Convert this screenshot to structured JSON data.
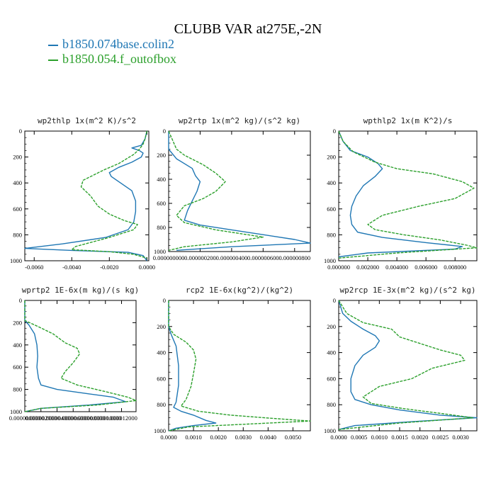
{
  "title": "CLUBB VAR at275E,-2N",
  "legend": [
    {
      "label": "b1850.074base.colin2",
      "color": "#1f77b4",
      "style": "solid"
    },
    {
      "label": "b1850.054.f_outofbox",
      "color": "#2ca02c",
      "style": "dashed"
    }
  ],
  "chart_data": [
    {
      "type": "line",
      "title": "wp2thlp  1x(m^2 K)/s^2",
      "ylim": [
        1000,
        0
      ],
      "xlim": [
        -0.0065,
        0.0001
      ],
      "xticks": [
        "-0.0060",
        "-0.0040",
        "-0.0020",
        "0.0000"
      ],
      "xtick_values": [
        -0.006,
        -0.004,
        -0.002,
        0.0
      ],
      "yticks": [
        "0",
        "200",
        "400",
        "600",
        "800",
        "1000"
      ],
      "series": [
        {
          "name": "b1850.074base.colin2",
          "points": [
            [
              0.0,
              0
            ],
            [
              -0.0001,
              60
            ],
            [
              -0.0003,
              110
            ],
            [
              -0.0008,
              130
            ],
            [
              -0.0004,
              150
            ],
            [
              -0.0002,
              170
            ],
            [
              -0.0003,
              200
            ],
            [
              -0.0008,
              240
            ],
            [
              -0.0015,
              280
            ],
            [
              -0.002,
              320
            ],
            [
              -0.0019,
              350
            ],
            [
              -0.0014,
              400
            ],
            [
              -0.0008,
              460
            ],
            [
              -0.0006,
              540
            ],
            [
              -0.0006,
              620
            ],
            [
              -0.0007,
              700
            ],
            [
              -0.001,
              760
            ],
            [
              -0.0022,
              820
            ],
            [
              -0.0045,
              870
            ],
            [
              -0.0065,
              905
            ],
            [
              -0.004,
              920
            ],
            [
              -0.001,
              935
            ],
            [
              -0.0002,
              960
            ],
            [
              0.0,
              1000
            ]
          ]
        },
        {
          "name": "b1850.054.f_outofbox",
          "points": [
            [
              0.0,
              0
            ],
            [
              -0.0001,
              60
            ],
            [
              -0.0002,
              100
            ],
            [
              -0.0004,
              140
            ],
            [
              -0.0007,
              180
            ],
            [
              -0.0015,
              250
            ],
            [
              -0.0023,
              300
            ],
            [
              -0.0034,
              380
            ],
            [
              -0.0035,
              430
            ],
            [
              -0.003,
              500
            ],
            [
              -0.0026,
              580
            ],
            [
              -0.002,
              640
            ],
            [
              -0.0012,
              690
            ],
            [
              -0.0005,
              720
            ],
            [
              -0.0007,
              760
            ],
            [
              -0.002,
              820
            ],
            [
              -0.0038,
              890
            ],
            [
              -0.004,
              915
            ],
            [
              -0.002,
              930
            ],
            [
              -0.0007,
              950
            ],
            [
              0.0,
              980
            ]
          ]
        }
      ]
    },
    {
      "type": "line",
      "title": "wp2rtp  1x(m^2 kg)/(s^2 kg)",
      "ylim": [
        1000,
        0
      ],
      "xlim": [
        0.0,
        9e-07
      ],
      "xticks": [
        "0.000000000",
        "0.000000200",
        "0.000000400",
        "0.000000600",
        "0.000000800"
      ],
      "xtick_values": [
        0.0,
        2e-07,
        4e-07,
        6e-07,
        8e-07
      ],
      "yticks": [
        "0",
        "200",
        "400",
        "600",
        "800",
        "1000"
      ],
      "series": [
        {
          "name": "b1850.074base.colin2",
          "points": [
            [
              0.0,
              0
            ],
            [
              0.0,
              150
            ],
            [
              5e-08,
              230
            ],
            [
              1.5e-07,
              310
            ],
            [
              1.7e-07,
              370
            ],
            [
              2e-07,
              420
            ],
            [
              1.8e-07,
              500
            ],
            [
              1.5e-07,
              580
            ],
            [
              1.2e-07,
              660
            ],
            [
              1e-07,
              740
            ],
            [
              2e-07,
              780
            ],
            [
              4e-07,
              820
            ],
            [
              6e-07,
              860
            ],
            [
              8e-07,
              900
            ],
            [
              9e-07,
              930
            ],
            [
              4e-07,
              960
            ],
            [
              5e-08,
              990
            ]
          ]
        },
        {
          "name": "b1850.054.f_outofbox",
          "points": [
            [
              0.0,
              0
            ],
            [
              5e-08,
              150
            ],
            [
              1e-07,
              200
            ],
            [
              2.2e-07,
              280
            ],
            [
              3e-07,
              350
            ],
            [
              3.6e-07,
              420
            ],
            [
              3e-07,
              500
            ],
            [
              2.2e-07,
              560
            ],
            [
              1e-07,
              620
            ],
            [
              5e-08,
              700
            ],
            [
              1e-07,
              760
            ],
            [
              3e-07,
              820
            ],
            [
              5e-07,
              860
            ],
            [
              6e-07,
              880
            ],
            [
              4e-07,
              920
            ],
            [
              1e-07,
              960
            ],
            [
              0.0,
              990
            ]
          ]
        }
      ]
    },
    {
      "type": "line",
      "title": "wpthlp2  1x(m K^2)/s",
      "ylim": [
        1000,
        0
      ],
      "xlim": [
        0.0,
        0.0095
      ],
      "xticks": [
        "0.000000",
        "0.002000",
        "0.004000",
        "0.006000",
        "0.008000"
      ],
      "xtick_values": [
        0.0,
        0.002,
        0.004,
        0.006,
        0.008
      ],
      "yticks": [
        "0",
        "200",
        "400",
        "600",
        "800",
        "1000"
      ],
      "series": [
        {
          "name": "b1850.074base.colin2",
          "points": [
            [
              0.0,
              0
            ],
            [
              0.0003,
              80
            ],
            [
              0.0008,
              150
            ],
            [
              0.002,
              200
            ],
            [
              0.0027,
              250
            ],
            [
              0.003,
              290
            ],
            [
              0.0025,
              350
            ],
            [
              0.0017,
              420
            ],
            [
              0.0012,
              500
            ],
            [
              0.0009,
              580
            ],
            [
              0.0008,
              650
            ],
            [
              0.0009,
              720
            ],
            [
              0.0013,
              780
            ],
            [
              0.003,
              820
            ],
            [
              0.006,
              860
            ],
            [
              0.0085,
              890
            ],
            [
              0.008,
              910
            ],
            [
              0.002,
              940
            ],
            [
              0.0,
              970
            ]
          ]
        },
        {
          "name": "b1850.054.f_outofbox",
          "points": [
            [
              0.0,
              0
            ],
            [
              0.0003,
              80
            ],
            [
              0.001,
              160
            ],
            [
              0.0025,
              240
            ],
            [
              0.004,
              290
            ],
            [
              0.0065,
              330
            ],
            [
              0.0085,
              390
            ],
            [
              0.0093,
              440
            ],
            [
              0.008,
              520
            ],
            [
              0.0055,
              580
            ],
            [
              0.003,
              650
            ],
            [
              0.002,
              720
            ],
            [
              0.0025,
              760
            ],
            [
              0.0045,
              800
            ],
            [
              0.007,
              840
            ],
            [
              0.0088,
              880
            ],
            [
              0.0095,
              900
            ],
            [
              0.004,
              940
            ],
            [
              0.0,
              980
            ]
          ]
        }
      ]
    },
    {
      "type": "line",
      "title": "wprtp2  1E-6x(m kg)/(s kg)",
      "ylim": [
        1000,
        0
      ],
      "xlim": [
        0.0,
        1.38e-05
      ],
      "xticks": [
        "0.000000000",
        "0.000002000",
        "0.000004000",
        "0.000006000",
        "0.000008000",
        "0.000010000",
        "0.000012000"
      ],
      "xtick_values": [
        0.0,
        2e-06,
        4e-06,
        6e-06,
        8e-06,
        1e-05,
        1.2e-05
      ],
      "yticks": [
        "0",
        "200",
        "400",
        "600",
        "800",
        "1000"
      ],
      "series": [
        {
          "name": "b1850.074base.colin2",
          "points": [
            [
              0.0,
              0
            ],
            [
              0.0,
              180
            ],
            [
              5e-07,
              220
            ],
            [
              1.2e-06,
              300
            ],
            [
              1.5e-06,
              400
            ],
            [
              1.6e-06,
              500
            ],
            [
              1.5e-06,
              600
            ],
            [
              1.7e-06,
              700
            ],
            [
              2e-06,
              760
            ],
            [
              4e-06,
              800
            ],
            [
              8e-06,
              840
            ],
            [
              1.1e-05,
              870
            ],
            [
              1.25e-05,
              910
            ],
            [
              8e-06,
              940
            ],
            [
              2e-06,
              970
            ],
            [
              0.0,
              1000
            ]
          ]
        },
        {
          "name": "b1850.054.f_outofbox",
          "points": [
            [
              0.0,
              0
            ],
            [
              0.0,
              180
            ],
            [
              1.5e-06,
              230
            ],
            [
              3.5e-06,
              300
            ],
            [
              5e-06,
              380
            ],
            [
              6.5e-06,
              430
            ],
            [
              6.8e-06,
              480
            ],
            [
              6e-06,
              560
            ],
            [
              5e-06,
              640
            ],
            [
              4.5e-06,
              700
            ],
            [
              6.5e-06,
              760
            ],
            [
              1e-05,
              820
            ],
            [
              1.28e-05,
              870
            ],
            [
              1.38e-05,
              900
            ],
            [
              9e-06,
              940
            ],
            [
              2e-06,
              970
            ],
            [
              0.0,
              1000
            ]
          ]
        }
      ]
    },
    {
      "type": "line",
      "title": "rcp2  1E-6x(kg^2)/(kg^2)",
      "ylim": [
        1000,
        0
      ],
      "xlim": [
        0.0,
        0.0057
      ],
      "xticks": [
        "0.0000",
        "0.0010",
        "0.0020",
        "0.0030",
        "0.0040",
        "0.0050"
      ],
      "xtick_values": [
        0.0,
        0.001,
        0.002,
        0.003,
        0.004,
        0.005
      ],
      "yticks": [
        "0",
        "200",
        "400",
        "600",
        "800",
        "1000"
      ],
      "series": [
        {
          "name": "b1850.074base.colin2",
          "points": [
            [
              0.0,
              0
            ],
            [
              0.0,
              200
            ],
            [
              0.0001,
              260
            ],
            [
              0.0003,
              350
            ],
            [
              0.0004,
              500
            ],
            [
              0.0004,
              650
            ],
            [
              0.0003,
              780
            ],
            [
              0.0002,
              820
            ],
            [
              0.0005,
              850
            ],
            [
              0.001,
              880
            ],
            [
              0.0015,
              920
            ],
            [
              0.0019,
              940
            ],
            [
              0.001,
              960
            ],
            [
              0.0003,
              980
            ],
            [
              0.0,
              1000
            ]
          ]
        },
        {
          "name": "b1850.054.f_outofbox",
          "points": [
            [
              0.0,
              0
            ],
            [
              0.0,
              200
            ],
            [
              0.0002,
              260
            ],
            [
              0.0007,
              320
            ],
            [
              0.001,
              380
            ],
            [
              0.0011,
              450
            ],
            [
              0.001,
              560
            ],
            [
              0.0009,
              660
            ],
            [
              0.0007,
              760
            ],
            [
              0.0005,
              810
            ],
            [
              0.0012,
              850
            ],
            [
              0.0025,
              880
            ],
            [
              0.0042,
              905
            ],
            [
              0.0057,
              925
            ],
            [
              0.003,
              950
            ],
            [
              0.0008,
              970
            ],
            [
              0.0,
              1000
            ]
          ]
        }
      ]
    },
    {
      "type": "line",
      "title": "wp2rcp  1E-3x(m^2 kg)/(s^2 kg)",
      "ylim": [
        1000,
        0
      ],
      "xlim": [
        0.0,
        0.0034
      ],
      "xticks": [
        "0.0000",
        "0.0005",
        "0.0010",
        "0.0015",
        "0.0020",
        "0.0025",
        "0.0030"
      ],
      "xtick_values": [
        0.0,
        0.0005,
        0.001,
        0.0015,
        0.002,
        0.0025,
        0.003
      ],
      "yticks": [
        "0",
        "200",
        "400",
        "600",
        "800",
        "1000"
      ],
      "series": [
        {
          "name": "b1850.074base.colin2",
          "points": [
            [
              0.0,
              0
            ],
            [
              0.0001,
              100
            ],
            [
              0.0003,
              160
            ],
            [
              0.0006,
              220
            ],
            [
              0.0009,
              270
            ],
            [
              0.001,
              310
            ],
            [
              0.0009,
              360
            ],
            [
              0.0006,
              420
            ],
            [
              0.0004,
              500
            ],
            [
              0.0003,
              600
            ],
            [
              0.0003,
              700
            ],
            [
              0.0004,
              760
            ],
            [
              0.0008,
              800
            ],
            [
              0.0015,
              840
            ],
            [
              0.0025,
              880
            ],
            [
              0.0034,
              900
            ],
            [
              0.0018,
              930
            ],
            [
              0.0004,
              960
            ],
            [
              0.0,
              990
            ]
          ]
        },
        {
          "name": "b1850.054.f_outofbox",
          "points": [
            [
              0.0,
              0
            ],
            [
              0.0002,
              100
            ],
            [
              0.0006,
              170
            ],
            [
              0.0013,
              220
            ],
            [
              0.0015,
              280
            ],
            [
              0.002,
              330
            ],
            [
              0.0025,
              380
            ],
            [
              0.003,
              420
            ],
            [
              0.0031,
              460
            ],
            [
              0.0023,
              520
            ],
            [
              0.0018,
              600
            ],
            [
              0.001,
              660
            ],
            [
              0.0006,
              740
            ],
            [
              0.0008,
              790
            ],
            [
              0.0016,
              830
            ],
            [
              0.0026,
              870
            ],
            [
              0.0033,
              900
            ],
            [
              0.0015,
              940
            ],
            [
              0.0,
              990
            ]
          ]
        }
      ]
    }
  ]
}
